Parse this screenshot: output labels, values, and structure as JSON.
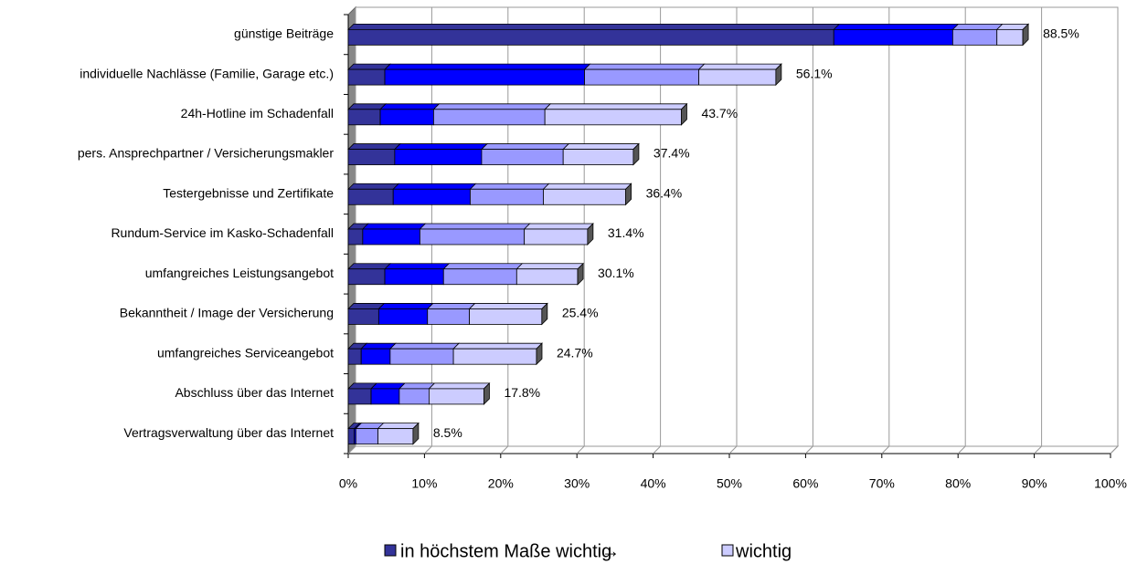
{
  "chart_data": {
    "type": "bar",
    "orientation": "horizontal",
    "stacked": true,
    "categories": [
      "günstige Beiträge",
      "individuelle Nachlässe (Familie, Garage etc.)",
      "24h-Hotline im Schadenfall",
      "pers. Ansprechpartner / Versicherungsmakler",
      "Testergebnisse und Zertifikate",
      "Rundum-Service im Kasko-Schadenfall",
      "umfangreiches Leistungsangebot",
      "Bekanntheit / Image der Versicherung",
      "umfangreiches Serviceangebot",
      "Abschluss über das Internet",
      "Vertragsverwaltung über das Internet"
    ],
    "series": [
      {
        "name": "in höchstem Maße wichtig",
        "color": "#333399",
        "values": [
          63.7,
          4.8,
          4.2,
          6.1,
          5.9,
          1.9,
          4.8,
          4.0,
          1.7,
          3.0,
          0.8
        ]
      },
      {
        "color": "#0000ff",
        "values": [
          15.6,
          26.2,
          7.0,
          11.4,
          10.1,
          7.5,
          7.7,
          6.4,
          3.8,
          3.7,
          0.2
        ]
      },
      {
        "color": "#9999ff",
        "values": [
          5.8,
          15.0,
          14.6,
          10.7,
          9.6,
          13.7,
          9.6,
          5.5,
          8.3,
          3.9,
          2.9
        ]
      },
      {
        "name": "wichtig",
        "color": "#ccccff",
        "values": [
          3.4,
          10.1,
          17.9,
          9.2,
          10.8,
          8.3,
          8.0,
          9.5,
          10.9,
          7.2,
          4.6
        ]
      }
    ],
    "totals": [
      88.5,
      56.1,
      43.7,
      37.4,
      36.4,
      31.4,
      30.1,
      25.4,
      24.7,
      17.8,
      8.5
    ],
    "total_labels": [
      "88.5%",
      "56.1%",
      "43.7%",
      "37.4%",
      "36.4%",
      "31.4%",
      "30.1%",
      "25.4%",
      "24.7%",
      "17.8%",
      "8.5%"
    ],
    "xlim": [
      0,
      100
    ],
    "xticks": [
      {
        "value": 0,
        "label": "0%"
      },
      {
        "value": 10,
        "label": "10%"
      },
      {
        "value": 20,
        "label": "20%"
      },
      {
        "value": 30,
        "label": "30%"
      },
      {
        "value": 40,
        "label": "40%"
      },
      {
        "value": 50,
        "label": "50%"
      },
      {
        "value": 60,
        "label": "60%"
      },
      {
        "value": 70,
        "label": "70%"
      },
      {
        "value": 80,
        "label": "80%"
      },
      {
        "value": 90,
        "label": "90%"
      },
      {
        "value": 100,
        "label": "100%"
      }
    ],
    "grid": true,
    "legend": {
      "position": "bottom",
      "separator": "→"
    }
  }
}
